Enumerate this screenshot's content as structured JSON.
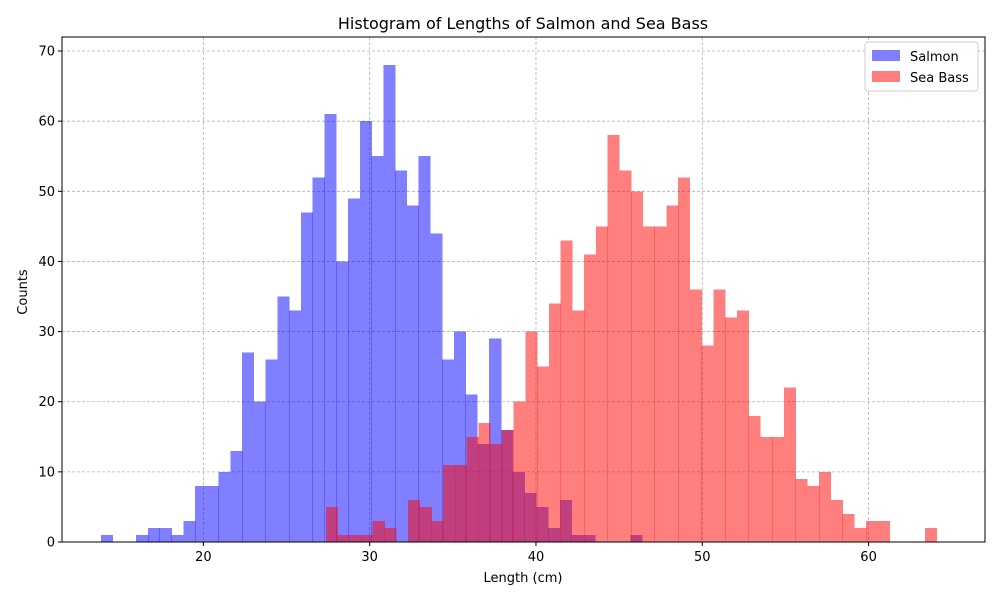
{
  "chart_data": {
    "type": "bar",
    "title": "Histogram of Lengths of Salmon and Sea Bass",
    "xlabel": "Length (cm)",
    "ylabel": "Counts",
    "xlim": [
      11.5,
      67.0
    ],
    "ylim": [
      0,
      72
    ],
    "xticks": [
      20,
      30,
      40,
      50,
      60
    ],
    "yticks": [
      0,
      10,
      20,
      30,
      40,
      50,
      60,
      70
    ],
    "grid": true,
    "legend_position": "top-right",
    "series": [
      {
        "name": "Salmon",
        "color": "#0000ff",
        "alpha": 0.5,
        "bin_start": 13.84,
        "bin_width": 0.7075,
        "counts": [
          1,
          0,
          0,
          1,
          2,
          2,
          1,
          3,
          8,
          8,
          10,
          13,
          27,
          20,
          26,
          35,
          33,
          47,
          52,
          61,
          40,
          49,
          60,
          55,
          68,
          53,
          48,
          55,
          44,
          26,
          30,
          21,
          14,
          29,
          16,
          10,
          7,
          5,
          2,
          6,
          1,
          1,
          0,
          0,
          0,
          1
        ]
      },
      {
        "name": "Sea Bass",
        "color": "#ff0000",
        "alpha": 0.5,
        "bin_start": 27.36,
        "bin_width": 0.7063,
        "counts": [
          5,
          1,
          1,
          1,
          3,
          2,
          0,
          6,
          5,
          3,
          11,
          11,
          15,
          17,
          14,
          16,
          20,
          30,
          25,
          34,
          43,
          33,
          41,
          45,
          58,
          53,
          50,
          45,
          45,
          48,
          52,
          36,
          28,
          36,
          32,
          33,
          18,
          15,
          15,
          22,
          9,
          8,
          10,
          6,
          4,
          2,
          3,
          3,
          0,
          0,
          0,
          2
        ]
      }
    ]
  }
}
